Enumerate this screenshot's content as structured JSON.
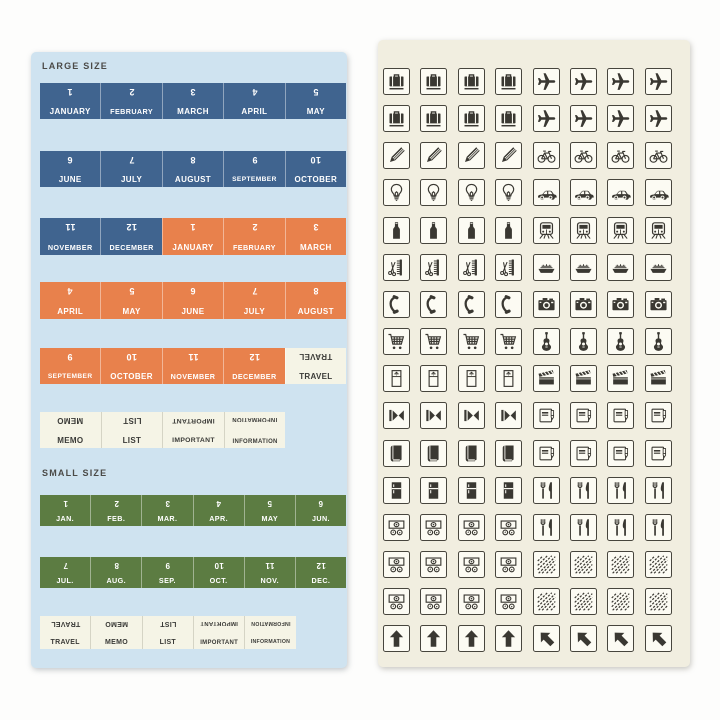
{
  "colors": {
    "blue": "#40648f",
    "orange": "#e8814c",
    "green": "#5c7c42",
    "cream": "#f5f4e6",
    "sheet_left_bg": "#cfe3f0",
    "sheet_right_bg": "#f1eee0",
    "icon_tile_bg": "#fcfbf3",
    "icon_ink": "#3a3832",
    "label_text": "#4b4a47",
    "sticker_text_light": "#ffffff",
    "sticker_text_dark": "#3a3a37"
  },
  "left_sheet": {
    "large_label": "LARGE SIZE",
    "small_label": "SMALL SIZE",
    "large_rows": [
      {
        "cells": [
          {
            "type": "month",
            "num": "1",
            "label": "JANUARY",
            "color": "blue"
          },
          {
            "type": "month",
            "num": "2",
            "label": "FEBRUARY",
            "color": "blue"
          },
          {
            "type": "month",
            "num": "3",
            "label": "MARCH",
            "color": "blue"
          },
          {
            "type": "month",
            "num": "4",
            "label": "APRIL",
            "color": "blue"
          },
          {
            "type": "month",
            "num": "5",
            "label": "MAY",
            "color": "blue"
          }
        ]
      },
      {
        "cells": [
          {
            "type": "month",
            "num": "6",
            "label": "JUNE",
            "color": "blue"
          },
          {
            "type": "month",
            "num": "7",
            "label": "JULY",
            "color": "blue"
          },
          {
            "type": "month",
            "num": "8",
            "label": "AUGUST",
            "color": "blue"
          },
          {
            "type": "month",
            "num": "9",
            "label": "SEPTEMBER",
            "color": "blue"
          },
          {
            "type": "month",
            "num": "10",
            "label": "OCTOBER",
            "color": "blue"
          }
        ]
      },
      {
        "cells": [
          {
            "type": "month",
            "num": "11",
            "label": "NOVEMBER",
            "color": "blue"
          },
          {
            "type": "month",
            "num": "12",
            "label": "DECEMBER",
            "color": "blue"
          },
          {
            "type": "month",
            "num": "1",
            "label": "JANUARY",
            "color": "orange"
          },
          {
            "type": "month",
            "num": "2",
            "label": "FEBRUARY",
            "color": "orange"
          },
          {
            "type": "month",
            "num": "3",
            "label": "MARCH",
            "color": "orange"
          }
        ]
      },
      {
        "cells": [
          {
            "type": "month",
            "num": "4",
            "label": "APRIL",
            "color": "orange"
          },
          {
            "type": "month",
            "num": "5",
            "label": "MAY",
            "color": "orange"
          },
          {
            "type": "month",
            "num": "6",
            "label": "JUNE",
            "color": "orange"
          },
          {
            "type": "month",
            "num": "7",
            "label": "JULY",
            "color": "orange"
          },
          {
            "type": "month",
            "num": "8",
            "label": "AUGUST",
            "color": "orange"
          }
        ]
      },
      {
        "cells": [
          {
            "type": "month",
            "num": "9",
            "label": "SEPTEMBER",
            "color": "orange"
          },
          {
            "type": "month",
            "num": "10",
            "label": "OCTOBER",
            "color": "orange"
          },
          {
            "type": "month",
            "num": "11",
            "label": "NOVEMBER",
            "color": "orange"
          },
          {
            "type": "month",
            "num": "12",
            "label": "DECEMBER",
            "color": "orange"
          },
          {
            "type": "word",
            "label": "TRAVEL"
          }
        ]
      },
      {
        "cells": [
          {
            "type": "word",
            "label": "MEMO"
          },
          {
            "type": "word",
            "label": "LIST"
          },
          {
            "type": "word",
            "label": "IMPORTANT"
          },
          {
            "type": "word",
            "label": "INFORMATION"
          },
          {
            "type": "empty"
          }
        ]
      }
    ],
    "small_rows": [
      {
        "cells": [
          {
            "type": "month",
            "num": "1",
            "label": "JAN.",
            "color": "green"
          },
          {
            "type": "month",
            "num": "2",
            "label": "FEB.",
            "color": "green"
          },
          {
            "type": "month",
            "num": "3",
            "label": "MAR.",
            "color": "green"
          },
          {
            "type": "month",
            "num": "4",
            "label": "APR.",
            "color": "green"
          },
          {
            "type": "month",
            "num": "5",
            "label": "MAY",
            "color": "green"
          },
          {
            "type": "month",
            "num": "6",
            "label": "JUN.",
            "color": "green"
          }
        ]
      },
      {
        "cells": [
          {
            "type": "month",
            "num": "7",
            "label": "JUL.",
            "color": "green"
          },
          {
            "type": "month",
            "num": "8",
            "label": "AUG.",
            "color": "green"
          },
          {
            "type": "month",
            "num": "9",
            "label": "SEP.",
            "color": "green"
          },
          {
            "type": "month",
            "num": "10",
            "label": "OCT.",
            "color": "green"
          },
          {
            "type": "month",
            "num": "11",
            "label": "NOV.",
            "color": "green"
          },
          {
            "type": "month",
            "num": "12",
            "label": "DEC.",
            "color": "green"
          }
        ]
      },
      {
        "cells": [
          {
            "type": "word",
            "label": "TRAVEL"
          },
          {
            "type": "word",
            "label": "MEMO"
          },
          {
            "type": "word",
            "label": "LIST"
          },
          {
            "type": "word",
            "label": "IMPORTANT"
          },
          {
            "type": "word",
            "label": "INFORMATION"
          },
          {
            "type": "empty"
          }
        ]
      }
    ]
  },
  "right_sheet": {
    "icon_rows": [
      {
        "left": "suitcase",
        "right": "airplane",
        "count_each": 4
      },
      {
        "left": "suitcase",
        "right": "airplane",
        "count_each": 4
      },
      {
        "left": "pencil",
        "right": "bicycle",
        "count_each": 4
      },
      {
        "left": "lightbulb",
        "right": "car",
        "count_each": 4
      },
      {
        "left": "wine-bottle",
        "right": "train",
        "count_each": 4
      },
      {
        "left": "barber",
        "right": "ship",
        "count_each": 4
      },
      {
        "left": "telephone",
        "right": "camera",
        "count_each": 4
      },
      {
        "left": "shopping-cart",
        "right": "guitar",
        "count_each": 4
      },
      {
        "left": "bed",
        "right": "clapperboard",
        "count_each": 4
      },
      {
        "left": "projector",
        "right": "travelers-notebook",
        "count_each": 4
      },
      {
        "left": "book",
        "right": "travelers-notebook",
        "count_each": 4
      },
      {
        "left": "refrigerator",
        "right": "restaurant",
        "count_each": 4
      },
      {
        "left": "money",
        "right": "restaurant",
        "count_each": 4
      },
      {
        "left": "money",
        "right": "diagonal-pattern",
        "count_each": 4
      },
      {
        "left": "money",
        "right": "diagonal-pattern",
        "count_each": 4
      },
      {
        "left": "arrow-up",
        "right": "arrow-up-left",
        "count_each": 4
      }
    ]
  }
}
